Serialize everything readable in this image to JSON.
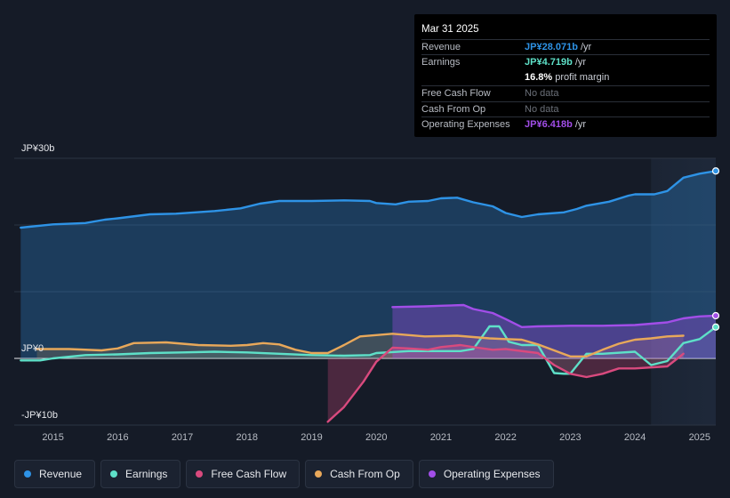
{
  "tooltip": {
    "date": "Mar 31 2025",
    "revenue": {
      "label": "Revenue",
      "value": "JP¥28.071b",
      "unit": "/yr"
    },
    "earnings": {
      "label": "Earnings",
      "value": "JP¥4.719b",
      "unit": "/yr"
    },
    "margin": {
      "value": "16.8%",
      "unit": "profit margin"
    },
    "fcf": {
      "label": "Free Cash Flow",
      "value": "No data"
    },
    "cfo": {
      "label": "Cash From Op",
      "value": "No data"
    },
    "opex": {
      "label": "Operating Expenses",
      "value": "JP¥6.418b",
      "unit": "/yr"
    }
  },
  "legend": {
    "revenue": "Revenue",
    "earnings": "Earnings",
    "fcf": "Free Cash Flow",
    "cfo": "Cash From Op",
    "opex": "Operating Expenses"
  },
  "colors": {
    "revenue": "#2e93e6",
    "earnings": "#5ee0c8",
    "fcf": "#d94a7e",
    "cfo": "#e8a85a",
    "opex": "#a24ee8",
    "background": "#151b27"
  },
  "chart_data": {
    "type": "line",
    "title": "",
    "xlabel": "",
    "ylabel": "",
    "ylim": [
      -10,
      30
    ],
    "y_ticks": [
      {
        "value": 30,
        "label": "JP¥30b"
      },
      {
        "value": 0,
        "label": "JP¥0"
      },
      {
        "value": -10,
        "label": "-JP¥10b"
      }
    ],
    "x_ticks": [
      {
        "value": 2015,
        "label": "2015"
      },
      {
        "value": 2016,
        "label": "2016"
      },
      {
        "value": 2017,
        "label": "2017"
      },
      {
        "value": 2018,
        "label": "2018"
      },
      {
        "value": 2019,
        "label": "2019"
      },
      {
        "value": 2020,
        "label": "2020"
      },
      {
        "value": 2021,
        "label": "2021"
      },
      {
        "value": 2022,
        "label": "2022"
      },
      {
        "value": 2023,
        "label": "2023"
      },
      {
        "value": 2024,
        "label": "2024"
      },
      {
        "value": 2025,
        "label": "2025"
      }
    ],
    "xlim": [
      2014.4,
      2025.25
    ],
    "highlight_from": 2024.25,
    "series": [
      {
        "key": "revenue",
        "name": "Revenue",
        "points": [
          [
            2014.5,
            19.6
          ],
          [
            2015.0,
            20.1
          ],
          [
            2015.5,
            20.3
          ],
          [
            2015.8,
            20.8
          ],
          [
            2016.0,
            21.0
          ],
          [
            2016.5,
            21.6
          ],
          [
            2016.9,
            21.7
          ],
          [
            2017.5,
            22.1
          ],
          [
            2017.9,
            22.5
          ],
          [
            2018.2,
            23.2
          ],
          [
            2018.5,
            23.6
          ],
          [
            2019.0,
            23.6
          ],
          [
            2019.5,
            23.7
          ],
          [
            2019.9,
            23.6
          ],
          [
            2020.0,
            23.3
          ],
          [
            2020.3,
            23.1
          ],
          [
            2020.5,
            23.5
          ],
          [
            2020.8,
            23.6
          ],
          [
            2021.0,
            24.0
          ],
          [
            2021.25,
            24.1
          ],
          [
            2021.5,
            23.4
          ],
          [
            2021.8,
            22.8
          ],
          [
            2022.0,
            21.8
          ],
          [
            2022.25,
            21.2
          ],
          [
            2022.5,
            21.6
          ],
          [
            2022.9,
            21.9
          ],
          [
            2023.1,
            22.4
          ],
          [
            2023.25,
            22.9
          ],
          [
            2023.6,
            23.5
          ],
          [
            2023.9,
            24.4
          ],
          [
            2024.0,
            24.6
          ],
          [
            2024.3,
            24.6
          ],
          [
            2024.5,
            25.1
          ],
          [
            2024.75,
            27.1
          ],
          [
            2025.0,
            27.7
          ],
          [
            2025.25,
            28.1
          ]
        ]
      },
      {
        "key": "earnings",
        "name": "Earnings",
        "points": [
          [
            2014.5,
            -0.3
          ],
          [
            2014.8,
            -0.3
          ],
          [
            2015.0,
            0.0
          ],
          [
            2015.5,
            0.5
          ],
          [
            2016.0,
            0.6
          ],
          [
            2016.5,
            0.8
          ],
          [
            2017.0,
            0.9
          ],
          [
            2017.5,
            1.0
          ],
          [
            2018.0,
            0.9
          ],
          [
            2018.5,
            0.7
          ],
          [
            2019.0,
            0.5
          ],
          [
            2019.5,
            0.4
          ],
          [
            2019.9,
            0.5
          ],
          [
            2020.0,
            0.8
          ],
          [
            2020.5,
            1.1
          ],
          [
            2021.0,
            1.1
          ],
          [
            2021.3,
            1.1
          ],
          [
            2021.5,
            1.4
          ],
          [
            2021.75,
            4.8
          ],
          [
            2021.9,
            4.8
          ],
          [
            2022.05,
            2.5
          ],
          [
            2022.25,
            2.0
          ],
          [
            2022.5,
            2.0
          ],
          [
            2022.75,
            -2.2
          ],
          [
            2022.9,
            -2.3
          ],
          [
            2023.0,
            -2.3
          ],
          [
            2023.25,
            0.7
          ],
          [
            2023.5,
            0.7
          ],
          [
            2024.0,
            1.0
          ],
          [
            2024.25,
            -1.0
          ],
          [
            2024.5,
            -0.4
          ],
          [
            2024.75,
            2.3
          ],
          [
            2025.0,
            2.9
          ],
          [
            2025.25,
            4.7
          ]
        ]
      },
      {
        "key": "fcf",
        "name": "Free Cash Flow",
        "points": [
          [
            2019.25,
            -9.5
          ],
          [
            2019.5,
            -7.3
          ],
          [
            2019.8,
            -3.5
          ],
          [
            2020.0,
            -0.5
          ],
          [
            2020.25,
            1.6
          ],
          [
            2020.5,
            1.5
          ],
          [
            2020.8,
            1.3
          ],
          [
            2021.0,
            1.7
          ],
          [
            2021.3,
            2.0
          ],
          [
            2021.5,
            1.7
          ],
          [
            2021.8,
            1.3
          ],
          [
            2022.0,
            1.4
          ],
          [
            2022.5,
            0.8
          ],
          [
            2022.75,
            -1.0
          ],
          [
            2023.0,
            -2.3
          ],
          [
            2023.25,
            -2.8
          ],
          [
            2023.5,
            -2.3
          ],
          [
            2023.75,
            -1.5
          ],
          [
            2024.0,
            -1.5
          ],
          [
            2024.5,
            -1.2
          ],
          [
            2024.75,
            0.7
          ]
        ]
      },
      {
        "key": "cfo",
        "name": "Cash From Op",
        "points": [
          [
            2014.75,
            1.4
          ],
          [
            2015.25,
            1.4
          ],
          [
            2015.75,
            1.2
          ],
          [
            2016.0,
            1.5
          ],
          [
            2016.25,
            2.3
          ],
          [
            2016.75,
            2.4
          ],
          [
            2017.25,
            2.0
          ],
          [
            2017.75,
            1.9
          ],
          [
            2018.0,
            2.0
          ],
          [
            2018.25,
            2.3
          ],
          [
            2018.5,
            2.1
          ],
          [
            2018.75,
            1.3
          ],
          [
            2019.0,
            0.8
          ],
          [
            2019.25,
            0.8
          ],
          [
            2019.5,
            2.0
          ],
          [
            2019.75,
            3.3
          ],
          [
            2020.25,
            3.7
          ],
          [
            2020.75,
            3.3
          ],
          [
            2021.25,
            3.4
          ],
          [
            2021.75,
            3.0
          ],
          [
            2022.0,
            2.9
          ],
          [
            2022.25,
            2.8
          ],
          [
            2022.5,
            2.1
          ],
          [
            2022.75,
            1.2
          ],
          [
            2023.0,
            0.3
          ],
          [
            2023.25,
            0.3
          ],
          [
            2023.5,
            1.3
          ],
          [
            2023.75,
            2.2
          ],
          [
            2024.0,
            2.8
          ],
          [
            2024.25,
            3.0
          ],
          [
            2024.5,
            3.3
          ],
          [
            2024.75,
            3.4
          ]
        ]
      },
      {
        "key": "opex",
        "name": "Operating Expenses",
        "points": [
          [
            2020.25,
            7.7
          ],
          [
            2020.75,
            7.8
          ],
          [
            2021.0,
            7.9
          ],
          [
            2021.35,
            8.0
          ],
          [
            2021.5,
            7.4
          ],
          [
            2021.8,
            6.8
          ],
          [
            2022.0,
            5.9
          ],
          [
            2022.25,
            4.7
          ],
          [
            2022.5,
            4.8
          ],
          [
            2023.0,
            4.9
          ],
          [
            2023.5,
            4.9
          ],
          [
            2024.0,
            5.0
          ],
          [
            2024.5,
            5.4
          ],
          [
            2024.75,
            6.0
          ],
          [
            2025.0,
            6.3
          ],
          [
            2025.25,
            6.4
          ]
        ]
      }
    ]
  }
}
